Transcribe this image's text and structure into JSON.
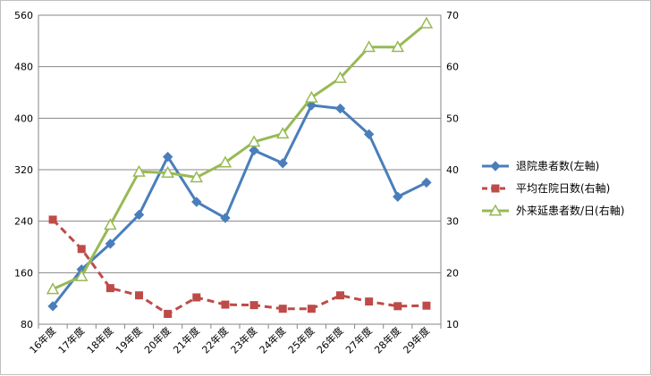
{
  "chart_data": {
    "type": "line",
    "categories": [
      "16年度",
      "17年度",
      "18年度",
      "19年度",
      "20年度",
      "21年度",
      "22年度",
      "23年度",
      "24年度",
      "25年度",
      "26年度",
      "27年度",
      "28年度",
      "29年度"
    ],
    "y_left": {
      "min": 80,
      "max": 560,
      "ticks": [
        "80",
        "160",
        "240",
        "320",
        "400",
        "480",
        "560"
      ]
    },
    "y_right": {
      "min": 10,
      "max": 70,
      "ticks": [
        "10",
        "20",
        "30",
        "40",
        "50",
        "60",
        "70"
      ]
    },
    "grid": true,
    "legend_position": "right",
    "series": [
      {
        "name": "退院患者数(左軸)",
        "axis": "left",
        "color": "#4a7ebb",
        "marker": "diamond",
        "dash": false,
        "values": [
          108,
          165,
          205,
          250,
          340,
          270,
          245,
          350,
          330,
          420,
          415,
          375,
          278,
          300
        ]
      },
      {
        "name": "平均在院日数(右軸)",
        "axis": "right",
        "color": "#be4b48",
        "marker": "square",
        "dash": true,
        "values": [
          30.3,
          24.6,
          17.0,
          15.6,
          12.0,
          15.2,
          13.8,
          13.7,
          13.0,
          13.0,
          15.6,
          14.4,
          13.5,
          13.6
        ]
      },
      {
        "name": "外来延患者数/日(右軸)",
        "axis": "right",
        "color": "#98b954",
        "marker": "triangle",
        "dash": false,
        "values": [
          16.8,
          19.3,
          29.3,
          39.6,
          39.4,
          38.5,
          41.4,
          45.4,
          47.0,
          54.0,
          57.8,
          63.8,
          63.8,
          68.4
        ]
      }
    ]
  }
}
